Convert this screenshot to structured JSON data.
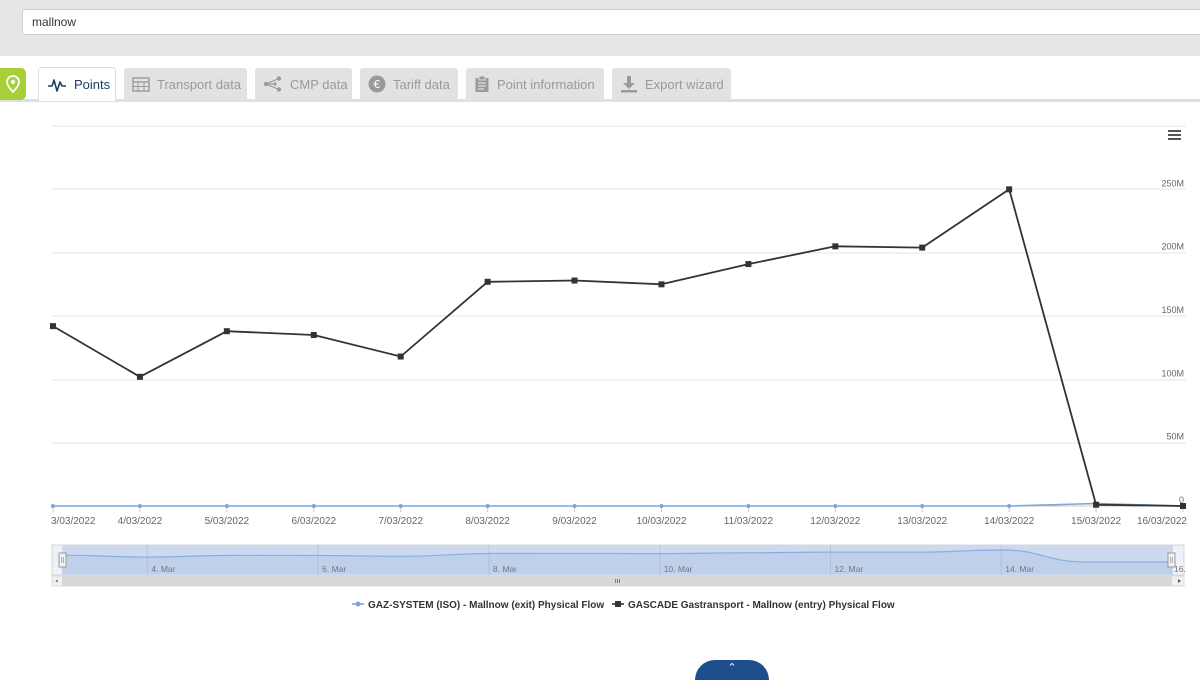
{
  "search": {
    "value": "mallnow"
  },
  "tabs": [
    {
      "label": "Points",
      "icon": "pulse-icon",
      "active": true
    },
    {
      "label": "Transport data",
      "icon": "calendar-icon",
      "active": false
    },
    {
      "label": "CMP data",
      "icon": "share-nodes-icon",
      "active": false
    },
    {
      "label": "Tariff data",
      "icon": "euro-icon",
      "active": false
    },
    {
      "label": "Point information",
      "icon": "clipboard-icon",
      "active": false
    },
    {
      "label": "Export wizard",
      "icon": "download-icon",
      "active": false
    }
  ],
  "colors": {
    "series_entry": "#333333",
    "series_exit": "#7ea6d6",
    "pin": "#a6cf3a",
    "fab": "#1f4e8c",
    "navigator_fill": "#cdd9ef"
  },
  "chart_data": {
    "type": "line",
    "x": [
      "3/03/2022",
      "4/03/2022",
      "5/03/2022",
      "6/03/2022",
      "7/03/2022",
      "8/03/2022",
      "9/03/2022",
      "10/03/2022",
      "11/03/2022",
      "12/03/2022",
      "13/03/2022",
      "14/03/2022",
      "15/03/2022",
      "16/03/2022"
    ],
    "series": [
      {
        "name": "GAZ-SYSTEM (ISO) - Mallnow (exit) Physical Flow",
        "color": "#7ea6d6",
        "marker": "circle",
        "values": [
          0,
          0,
          0,
          0,
          0,
          0,
          0,
          0,
          0,
          0,
          0,
          0,
          2000000,
          0
        ]
      },
      {
        "name": "GASCADE Gastransport - Mallnow (entry) Physical Flow",
        "color": "#333333",
        "marker": "square",
        "values": [
          142000000,
          102000000,
          138000000,
          135000000,
          118000000,
          177000000,
          178000000,
          175000000,
          191000000,
          205000000,
          204000000,
          250000000,
          1000000,
          0
        ]
      }
    ],
    "yticks": [
      "0",
      "50M",
      "100M",
      "150M",
      "200M",
      "250M"
    ],
    "ytick_values": [
      0,
      50000000,
      100000000,
      150000000,
      200000000,
      250000000
    ],
    "ylim": [
      0,
      300000000
    ],
    "y_axis_side": "right",
    "grid": true,
    "legend_position": "bottom",
    "menu_icon": "hamburger-icon",
    "navigator": {
      "labels": [
        "4. Mar",
        "6. Mar",
        "8. Mar",
        "10. Mar",
        "12. Mar",
        "14. Mar",
        "16."
      ],
      "label_days": [
        4,
        6,
        8,
        10,
        12,
        14,
        16
      ]
    }
  }
}
